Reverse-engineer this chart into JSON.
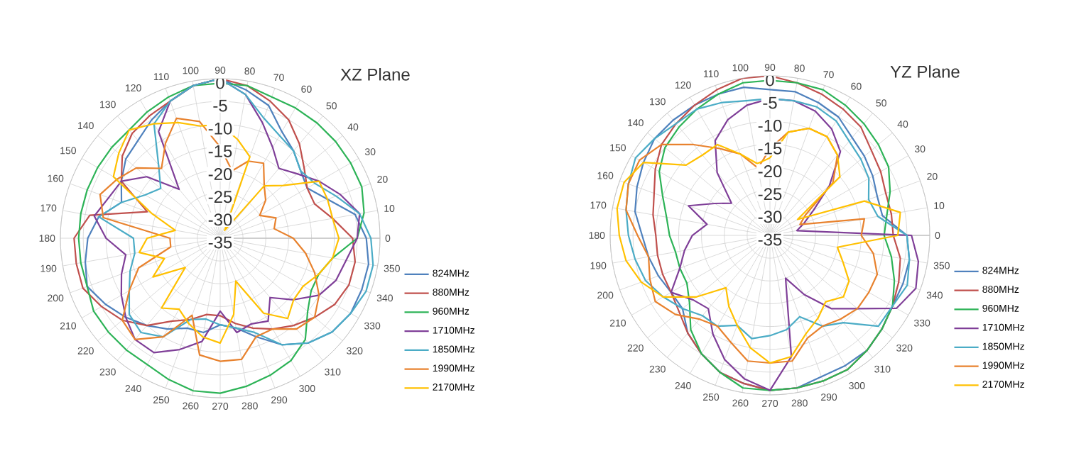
{
  "chart_data": [
    {
      "type": "radar",
      "title": "XZ  Plane",
      "categories": [
        "90",
        "80",
        "70",
        "60",
        "50",
        "40",
        "30",
        "20",
        "10",
        "0",
        "350",
        "340",
        "330",
        "320",
        "310",
        "300",
        "290",
        "280",
        "270",
        "260",
        "250",
        "240",
        "230",
        "220",
        "210",
        "200",
        "190",
        "180",
        "170",
        "160",
        "150",
        "140",
        "130",
        "120",
        "110",
        "100"
      ],
      "ylim": [
        -35,
        0
      ],
      "yticks": [
        -35,
        -30,
        -25,
        -20,
        -15,
        -10,
        -5,
        0
      ],
      "grid": true,
      "legend": "right",
      "series": [
        {
          "name": "824MHz",
          "color": "#4f81bd",
          "values": [
            0,
            -2,
            -4,
            -8,
            -10,
            -12,
            -13,
            -10,
            -5,
            -3,
            -2,
            -2,
            -2,
            -3,
            -5,
            -8,
            -12,
            -15,
            -16,
            -14,
            -14,
            -12,
            -10,
            -8,
            -6,
            -4,
            -5,
            -6,
            -8,
            -12,
            -10,
            -8,
            -7,
            -5,
            -3,
            -1
          ]
        },
        {
          "name": "880MHz",
          "color": "#c0504d",
          "values": [
            0,
            -1,
            -3,
            -5,
            -8,
            -11,
            -13,
            -13,
            -10,
            -6,
            -5,
            -5,
            -6,
            -8,
            -10,
            -12,
            -14,
            -16,
            -18,
            -18,
            -16,
            -14,
            -10,
            -7,
            -5,
            -3,
            -3,
            -3,
            -6,
            -18,
            -10,
            -7,
            -5,
            -4,
            -3,
            -1
          ]
        },
        {
          "name": "960MHz",
          "color": "#2db357",
          "values": [
            -1,
            -1,
            -2,
            -2,
            -2,
            -2,
            -2,
            -2,
            -3,
            -5,
            -10,
            -12,
            -12,
            -10,
            -6,
            -4,
            -3,
            -2,
            -1,
            -1,
            -2,
            -3,
            -3,
            -3,
            -3,
            -4,
            -4,
            -4,
            -4,
            -4,
            -4,
            -4,
            -4,
            -3,
            -2,
            -1
          ]
        },
        {
          "name": "1710MHz",
          "color": "#7f3f98",
          "values": [
            0,
            -3,
            -8,
            -12,
            -15,
            -13,
            -10,
            -7,
            -4,
            -5,
            -7,
            -8,
            -10,
            -14,
            -18,
            -14,
            -15,
            -14,
            -19,
            -12,
            -9,
            -6,
            -6,
            -8,
            -10,
            -12,
            -14,
            -10,
            -7,
            -9,
            -10,
            -14,
            -21,
            -8,
            -3,
            -1
          ]
        },
        {
          "name": "1850MHz",
          "color": "#4bacc6",
          "values": [
            0,
            -3,
            -7,
            -9,
            -10,
            -12,
            -11,
            -8,
            -4,
            -2,
            -1,
            -1,
            -2,
            -3,
            -5,
            -8,
            -13,
            -15,
            -16,
            -17,
            -16,
            -10,
            -8,
            -9,
            -12,
            -14,
            -16,
            -16,
            -8,
            -12,
            -16,
            -18,
            -14,
            -6,
            -3,
            -1
          ]
        },
        {
          "name": "1990MHz",
          "color": "#e8822e",
          "values": [
            -15,
            -20,
            -17,
            -16,
            -20,
            -22,
            -25,
            -22,
            -23,
            -19,
            -16,
            -13,
            -10,
            -8,
            -9,
            -12,
            -12,
            -8,
            -8,
            -9,
            -17,
            -10,
            -6,
            -7,
            -12,
            -16,
            -24,
            -24,
            -9,
            -7,
            -9,
            -11,
            -15,
            -11,
            -7,
            -9
          ]
        },
        {
          "name": "2170MHz",
          "color": "#ffc000",
          "values": [
            -10,
            -13,
            -16,
            -33,
            -20,
            -17,
            -10,
            -10,
            -10,
            -9,
            -10,
            -12,
            -14,
            -14,
            -12,
            -16,
            -25,
            -18,
            -12,
            -13,
            -15,
            -17,
            -15,
            -25,
            -18,
            -22,
            -17,
            -19,
            -25,
            -19,
            -8,
            -6,
            -4,
            -6,
            -8,
            -10
          ]
        }
      ]
    },
    {
      "type": "radar",
      "title": "YZ  Plane",
      "categories": [
        "90",
        "80",
        "70",
        "60",
        "50",
        "40",
        "30",
        "20",
        "10",
        "0",
        "350",
        "340",
        "330",
        "320",
        "310",
        "300",
        "290",
        "280",
        "270",
        "260",
        "250",
        "240",
        "230",
        "220",
        "210",
        "200",
        "190",
        "180",
        "170",
        "160",
        "150",
        "140",
        "130",
        "120",
        "110",
        "100"
      ],
      "ylim": [
        -35,
        0
      ],
      "yticks": [
        -35,
        -30,
        -25,
        -20,
        -15,
        -10,
        -5,
        0
      ],
      "grid": true,
      "legend": "right",
      "series": [
        {
          "name": "824MHz",
          "color": "#4f81bd",
          "values": [
            -3,
            -3,
            -4,
            -5,
            -7,
            -8,
            -9,
            -10,
            -10,
            -5,
            -4,
            -4,
            -4,
            -3,
            -2,
            -2,
            -2,
            -1,
            -1,
            -2,
            -3,
            -5,
            -7,
            -10,
            -10,
            -9,
            -8,
            -7,
            -5,
            -4,
            -3,
            -2,
            -2,
            -2,
            -2,
            -2
          ]
        },
        {
          "name": "880MHz",
          "color": "#c0504d",
          "values": [
            0,
            -1,
            -2,
            -3,
            -4,
            -6,
            -7,
            -8,
            -8,
            -8,
            -6,
            -5,
            -4,
            -3,
            -2,
            -1,
            -1,
            -1,
            -1,
            -2,
            -3,
            -5,
            -7,
            -9,
            -10,
            -10,
            -10,
            -10,
            -9,
            -8,
            -6,
            -4,
            -3,
            -2,
            -1,
            0
          ]
        },
        {
          "name": "960MHz",
          "color": "#2db357",
          "values": [
            -1,
            -1,
            -1,
            -2,
            -3,
            -4,
            -5,
            -7,
            -9,
            -10,
            -8,
            -6,
            -4,
            -3,
            -2,
            -1,
            -1,
            -1,
            -1,
            -1,
            -3,
            -5,
            -8,
            -12,
            -14,
            -14,
            -14,
            -13,
            -12,
            -10,
            -7,
            -5,
            -4,
            -3,
            -2,
            -1
          ]
        },
        {
          "name": "1710MHz",
          "color": "#7f3f98",
          "values": [
            -5,
            -5,
            -6,
            -8,
            -11,
            -18,
            -24,
            -27,
            -29,
            -4,
            -2,
            -1,
            -3,
            -10,
            -14,
            -20,
            -25,
            -8,
            -1,
            -3,
            -6,
            -10,
            -14,
            -13,
            -10,
            -14,
            -16,
            -18,
            -21,
            -16,
            -21,
            -24,
            -17,
            -11,
            -8,
            -6
          ]
        },
        {
          "name": "1850MHz",
          "color": "#4bacc6",
          "values": [
            -5,
            -5,
            -5,
            -6,
            -8,
            -9,
            -10,
            -12,
            -11,
            -5,
            -4,
            -3,
            -4,
            -4,
            -10,
            -12,
            -16,
            -14,
            -13,
            -12,
            -14,
            -12,
            -12,
            -10,
            -8,
            -6,
            -5,
            -4,
            -3,
            -2,
            -1,
            -2,
            -3,
            -3,
            -4,
            -5
          ]
        },
        {
          "name": "1990MHz",
          "color": "#e8822e",
          "values": [
            -16,
            -12,
            -10,
            -10,
            -12,
            -17,
            -26,
            -28,
            -14,
            -15,
            -12,
            -10,
            -10,
            -10,
            -11,
            -12,
            -11,
            -7,
            -7,
            -7,
            -10,
            -12,
            -11,
            -8,
            -6,
            -7,
            -8,
            -6,
            -3,
            -2,
            -2,
            -4,
            -9,
            -13,
            -16,
            -20
          ]
        },
        {
          "name": "2170MHz",
          "color": "#ffc000",
          "values": [
            -18,
            -12,
            -10,
            -10,
            -12,
            -15,
            -28,
            -13,
            -6,
            -7,
            -20,
            -18,
            -15,
            -14,
            -16,
            -14,
            -12,
            -8,
            -7,
            -10,
            -14,
            -17,
            -20,
            -14,
            -8,
            -5,
            -3,
            -2,
            -1,
            -1,
            -3,
            -11,
            -12,
            -12,
            -16,
            -19
          ]
        }
      ]
    }
  ]
}
